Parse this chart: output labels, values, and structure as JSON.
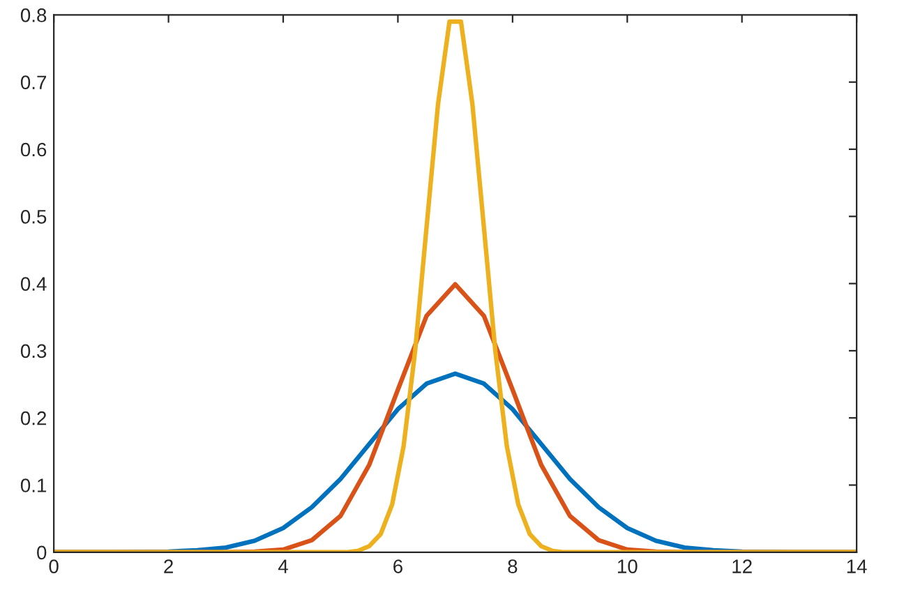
{
  "chart_data": {
    "type": "line",
    "xlim": [
      0,
      14
    ],
    "ylim": [
      0,
      0.8
    ],
    "xticks": [
      0,
      2,
      4,
      6,
      8,
      10,
      12,
      14
    ],
    "yticks": [
      0,
      0.1,
      0.2,
      0.3,
      0.4,
      0.5,
      0.6,
      0.7,
      0.8
    ],
    "marker": "none",
    "line_style": "solid",
    "series": [
      {
        "color": "#0072bd",
        "x": [
          0,
          1,
          2,
          2.5,
          3,
          3.5,
          4,
          4.5,
          5,
          5.5,
          6,
          6.5,
          7,
          7.5,
          8,
          8.5,
          9,
          9.5,
          10,
          10.5,
          11,
          11.5,
          12,
          13,
          14
        ],
        "values": [
          0,
          0,
          0.001,
          0.003,
          0.007,
          0.017,
          0.036,
          0.067,
          0.109,
          0.161,
          0.213,
          0.251,
          0.266,
          0.251,
          0.213,
          0.161,
          0.109,
          0.067,
          0.036,
          0.017,
          0.007,
          0.003,
          0.001,
          0,
          0
        ]
      },
      {
        "color": "#d95319",
        "x": [
          0,
          3,
          3.5,
          4,
          4.5,
          5,
          5.5,
          6,
          6.5,
          7,
          7.5,
          8,
          8.5,
          9,
          9.5,
          10,
          10.5,
          11,
          14
        ],
        "values": [
          0,
          0,
          0.001,
          0.004,
          0.018,
          0.054,
          0.13,
          0.242,
          0.352,
          0.399,
          0.352,
          0.242,
          0.13,
          0.054,
          0.018,
          0.004,
          0.001,
          0,
          0
        ]
      },
      {
        "color": "#edb120",
        "x": [
          0,
          5.1,
          5.3,
          5.5,
          5.7,
          5.9,
          6.1,
          6.3,
          6.5,
          6.7,
          6.9,
          7.1,
          7.3,
          7.5,
          7.7,
          7.9,
          8.1,
          8.3,
          8.5,
          8.7,
          8.9,
          14
        ],
        "values": [
          0,
          0,
          0.002,
          0.009,
          0.027,
          0.071,
          0.158,
          0.299,
          0.484,
          0.667,
          0.79,
          0.79,
          0.667,
          0.484,
          0.299,
          0.158,
          0.071,
          0.027,
          0.009,
          0.002,
          0,
          0
        ]
      }
    ]
  }
}
